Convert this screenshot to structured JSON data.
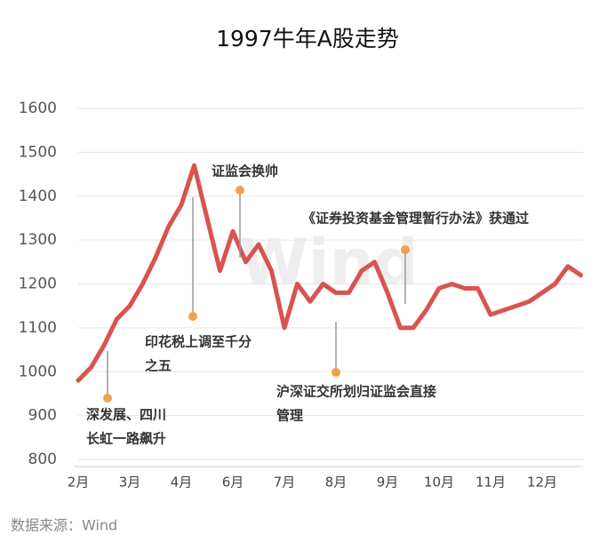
{
  "chart_data": {
    "type": "line",
    "title": "1997牛年A股走势",
    "categories": [
      "2月",
      null,
      null,
      null,
      "3月",
      null,
      null,
      null,
      "4月",
      null,
      null,
      null,
      "6月",
      null,
      null,
      null,
      "7月",
      null,
      null,
      null,
      "8月",
      null,
      null,
      null,
      "9月",
      null,
      null,
      null,
      "10月",
      null,
      null,
      null,
      "11月",
      null,
      null,
      null,
      "12月",
      null,
      null,
      null
    ],
    "values": [
      980,
      1010,
      1060,
      1120,
      1150,
      1200,
      1260,
      1330,
      1380,
      1470,
      1350,
      1230,
      1320,
      1250,
      1290,
      1230,
      1100,
      1200,
      1160,
      1200,
      1180,
      1180,
      1230,
      1250,
      1180,
      1100,
      1100,
      1140,
      1190,
      1200,
      1190,
      1190,
      1130,
      1140,
      1150,
      1160,
      1180,
      1200,
      1240,
      1220
    ],
    "color": "#d9534f",
    "ylim": [
      800,
      1600
    ],
    "yticks": [
      800,
      900,
      1000,
      1100,
      1200,
      1300,
      1400,
      1500,
      1600
    ],
    "grid": true,
    "annotations": [
      {
        "lines": [
          "深发展、四川",
          "长虹一路飙升"
        ]
      },
      {
        "lines": [
          "印花税上调至千分",
          "之五"
        ]
      },
      {
        "lines": [
          "证监会换帅"
        ]
      },
      {
        "lines": [
          "《证券投资基金管理暂行办法》获通过"
        ]
      },
      {
        "lines": [
          "沪深证交所划归证监会直接",
          "管理"
        ]
      }
    ],
    "watermark": "Wind",
    "source": "数据来源：Wind"
  }
}
